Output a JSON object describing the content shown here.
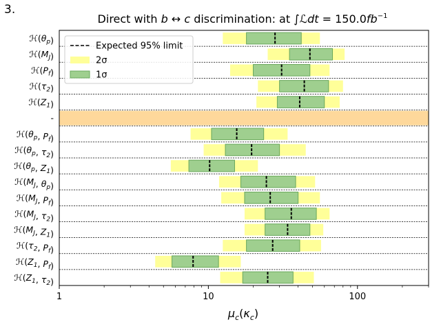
{
  "figure_number": "3.",
  "chart_data": {
    "type": "interval",
    "title": "Direct with b↔c discrimination: at ∫ℒdt = 150.0fb⁻¹",
    "xlabel": "μ_c(κ_c)",
    "xscale": "log",
    "xlim": [
      1,
      300
    ],
    "xticks": [
      {
        "value": 1,
        "label": "1"
      },
      {
        "value": 10,
        "label": "10"
      },
      {
        "value": 100,
        "label": "100"
      }
    ],
    "legend": {
      "position": "top-left",
      "entries": [
        {
          "key": "expected",
          "label": "Expected 95% limit"
        },
        {
          "key": "two_sigma",
          "label": "2σ"
        },
        {
          "key": "one_sigma",
          "label": "1σ"
        }
      ]
    },
    "colors": {
      "two_sigma": "#ffff99",
      "one_sigma": "#9fcf8f",
      "one_sigma_edge": "#6aa85c",
      "separator": "#fed89b",
      "median": "#000000"
    },
    "rows": [
      {
        "label": "ℋ(θ_p)",
        "kind": "row",
        "median": 28,
        "one_sigma": [
          18,
          42
        ],
        "two_sigma": [
          12.5,
          56
        ]
      },
      {
        "label": "ℋ(M_J)",
        "kind": "row",
        "median": 48,
        "one_sigma": [
          35,
          68
        ],
        "two_sigma": [
          25,
          82
        ]
      },
      {
        "label": "ℋ(P_f)",
        "kind": "row",
        "median": 31,
        "one_sigma": [
          20,
          48
        ],
        "two_sigma": [
          14,
          65
        ]
      },
      {
        "label": "ℋ(τ_2)",
        "kind": "row",
        "median": 44,
        "one_sigma": [
          30,
          64
        ],
        "two_sigma": [
          21.5,
          80
        ]
      },
      {
        "label": "ℋ(Z_1)",
        "kind": "row",
        "median": 41,
        "one_sigma": [
          29,
          60
        ],
        "two_sigma": [
          21,
          76
        ]
      },
      {
        "label": "-",
        "kind": "separator"
      },
      {
        "label": "ℋ(θ_p, P_f)",
        "kind": "row",
        "median": 15.5,
        "one_sigma": [
          10.5,
          23.5
        ],
        "two_sigma": [
          7.6,
          34
        ]
      },
      {
        "label": "ℋ(θ_p, τ_2)",
        "kind": "row",
        "median": 19.5,
        "one_sigma": [
          13,
          30
        ],
        "two_sigma": [
          9.3,
          45
        ]
      },
      {
        "label": "ℋ(θ_p, Z_1)",
        "kind": "row",
        "median": 10.2,
        "one_sigma": [
          7.4,
          15
        ],
        "two_sigma": [
          5.6,
          21.5
        ]
      },
      {
        "label": "ℋ(M_J, θ_p)",
        "kind": "row",
        "median": 24.5,
        "one_sigma": [
          16.5,
          38.5
        ],
        "two_sigma": [
          11.8,
          52
        ]
      },
      {
        "label": "ℋ(M_J, P_f)",
        "kind": "row",
        "median": 26,
        "one_sigma": [
          17.5,
          40
        ],
        "two_sigma": [
          12.2,
          56
        ]
      },
      {
        "label": "ℋ(M_J, τ_2)",
        "kind": "row",
        "median": 36,
        "one_sigma": [
          24,
          53
        ],
        "two_sigma": [
          17.5,
          65
        ]
      },
      {
        "label": "ℋ(M_J, Z_1)",
        "kind": "row",
        "median": 34,
        "one_sigma": [
          24,
          48
        ],
        "two_sigma": [
          17.5,
          59
        ]
      },
      {
        "label": "ℋ(τ_2, P_f)",
        "kind": "row",
        "median": 27,
        "one_sigma": [
          18,
          41
        ],
        "two_sigma": [
          12.5,
          57
        ]
      },
      {
        "label": "ℋ(Z_1, P_f)",
        "kind": "row",
        "median": 7.9,
        "one_sigma": [
          5.7,
          11.7
        ],
        "two_sigma": [
          4.4,
          16.5
        ]
      },
      {
        "label": "ℋ(Z_1, τ_2)",
        "kind": "row",
        "median": 25,
        "one_sigma": [
          17,
          37
        ],
        "two_sigma": [
          12,
          51
        ]
      }
    ]
  }
}
